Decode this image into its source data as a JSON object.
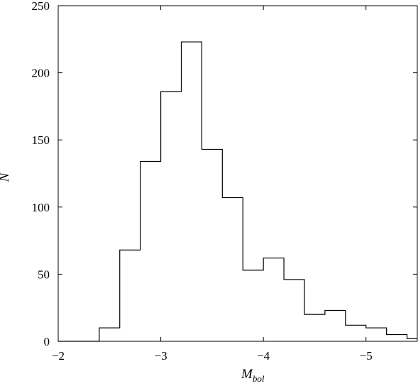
{
  "chart_data": {
    "type": "bar",
    "title": "",
    "xlabel": "M",
    "xlabel_subscript": "bol",
    "ylabel": "N",
    "xlim": [
      -2,
      -5.5
    ],
    "ylim": [
      0,
      250
    ],
    "grid": false,
    "x_ticks": [
      -2,
      -3,
      -4,
      -5
    ],
    "x_tick_labels": [
      "−2",
      "−3",
      "−4",
      "−5"
    ],
    "y_ticks": [
      0,
      50,
      100,
      150,
      200,
      250
    ],
    "y_tick_labels": [
      "0",
      "50",
      "100",
      "150",
      "200",
      "250"
    ],
    "bin_edges": [
      -2.0,
      -2.2,
      -2.4,
      -2.6,
      -2.8,
      -3.0,
      -3.2,
      -3.4,
      -3.6,
      -3.8,
      -4.0,
      -4.2,
      -4.4,
      -4.6,
      -4.8,
      -5.0,
      -5.2,
      -5.4,
      -5.5
    ],
    "counts": [
      0,
      0,
      10,
      68,
      134,
      186,
      223,
      143,
      107,
      53,
      62,
      46,
      20,
      23,
      12,
      10,
      5,
      2
    ]
  }
}
